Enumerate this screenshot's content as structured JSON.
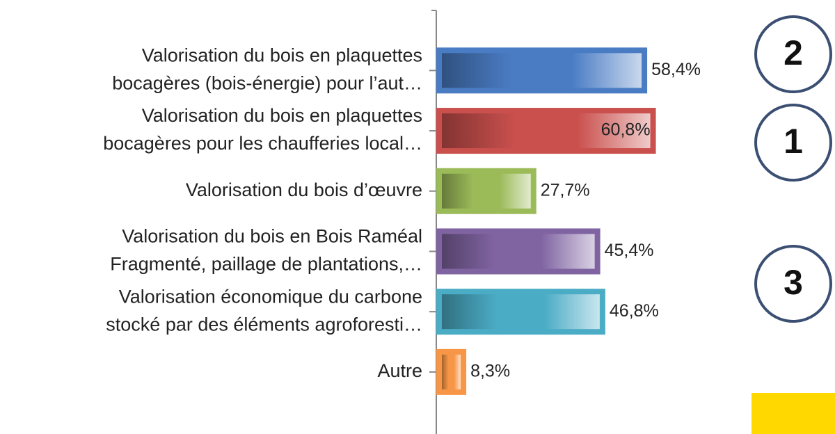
{
  "chart_data": {
    "type": "hbar",
    "categories": [
      [
        "Valorisation du bois en plaquettes",
        "bocagères (bois-énergie) pour l’aut…"
      ],
      [
        "Valorisation du bois en plaquettes",
        "bocagères pour les chaufferies local…"
      ],
      [
        "Valorisation du bois d’œuvre"
      ],
      [
        "Valorisation du bois en Bois Raméal",
        "Fragmenté, paillage de plantations,…"
      ],
      [
        "Valorisation économique du carbone",
        "stocké par des éléments agroforesti…"
      ],
      [
        "Autre"
      ]
    ],
    "values": [
      58.4,
      60.8,
      27.7,
      45.4,
      46.8,
      8.3
    ],
    "value_labels": [
      "58,4%",
      "60,8%",
      "27,7%",
      "45,4%",
      "46,8%",
      "8,3%"
    ],
    "colors": [
      "#4a7cc4",
      "#c9504d",
      "#9bbb59",
      "#8064a2",
      "#4bacc6",
      "#f79646"
    ],
    "annotations": [
      "2",
      "1",
      "3"
    ]
  }
}
